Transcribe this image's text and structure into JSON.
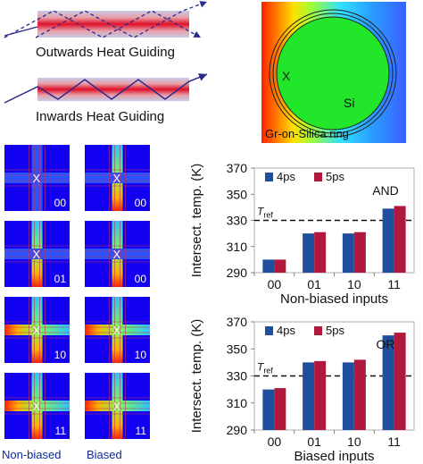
{
  "schematics": {
    "outwards_label": "Outwards Heat Guiding",
    "inwards_label": "Inwards Heat Guiding"
  },
  "ring": {
    "material_label": "Si",
    "ring_label": "Gr-on-Silica ring",
    "marker": "X"
  },
  "maps": {
    "marker": "X",
    "non_biased_label": "Non-biased",
    "biased_label": "Biased",
    "non_biased_cells": [
      "00",
      "01",
      "10",
      "11"
    ],
    "biased_cells": [
      "00",
      "00",
      "10",
      "11"
    ]
  },
  "chart_data": [
    {
      "type": "bar",
      "categories": [
        "00",
        "01",
        "10",
        "11"
      ],
      "series": [
        {
          "name": "4ps",
          "values": [
            300,
            320,
            320,
            339
          ]
        },
        {
          "name": "5ps",
          "values": [
            300,
            321,
            321,
            341
          ]
        }
      ],
      "ylabel": "Intersect. temp. (K)",
      "xlabel": "Non-biased inputs",
      "ylim": [
        290,
        370
      ],
      "yticks": [
        290,
        310,
        330,
        350,
        370
      ],
      "annotation": "AND",
      "reference_line": {
        "label_main": "T",
        "label_sub": "ref",
        "value": 330
      },
      "legend_position": "top"
    },
    {
      "type": "bar",
      "categories": [
        "00",
        "01",
        "10",
        "11"
      ],
      "series": [
        {
          "name": "4ps",
          "values": [
            320,
            340,
            340,
            360
          ]
        },
        {
          "name": "5ps",
          "values": [
            321,
            341,
            342,
            362
          ]
        }
      ],
      "ylabel": "Intersect. temp. (K)",
      "xlabel": "Biased inputs",
      "ylim": [
        290,
        370
      ],
      "yticks": [
        290,
        310,
        330,
        350,
        370
      ],
      "annotation": "OR",
      "reference_line": {
        "label_main": "T",
        "label_sub": "ref",
        "value": 330
      },
      "legend_position": "top"
    }
  ],
  "colors": {
    "series_1": "#1f4e9c",
    "series_2": "#b0183c",
    "map_bg": "#1400f0",
    "ring_fill": "#22e629",
    "label_blue": "#0d2a9c"
  }
}
